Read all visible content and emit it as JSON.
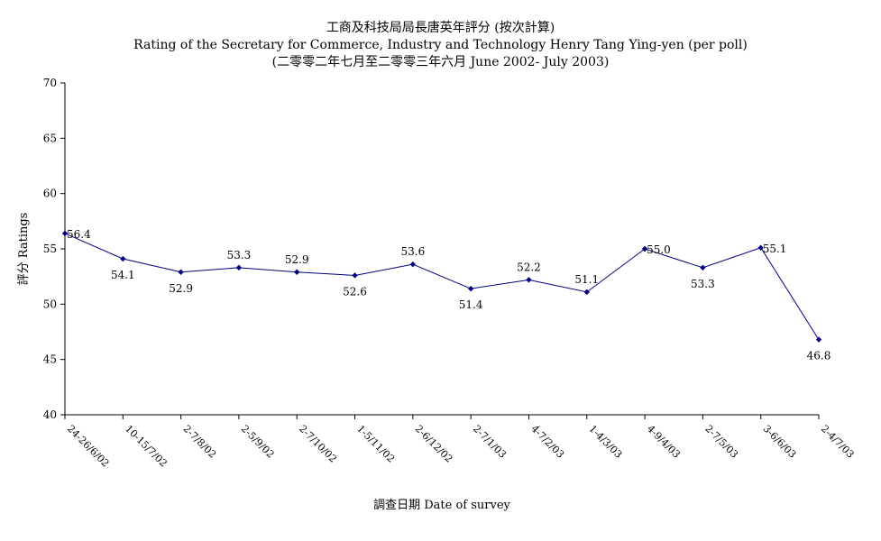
{
  "chart_data": {
    "type": "line",
    "title": "工商及科技局局長唐英年評分 (按次計算)",
    "subtitle": "Rating of the Secretary for Commerce, Industry and Technology Henry Tang Ying-yen  (per poll)",
    "subtitle2": "(二零零二年七月至二零零三年六月 June 2002- July 2003)",
    "xlabel": "調查日期 Date of survey",
    "ylabel": "評分 Ratings",
    "ylim": [
      40,
      70
    ],
    "yticks": [
      "40",
      "45",
      "50",
      "55",
      "60",
      "65",
      "70"
    ],
    "grid": false,
    "categories": [
      "24-26/6/02",
      "10-15/7/02",
      "2-7/8/02",
      "2-5/9/02",
      "2-7/10/02",
      "1-5/11/02",
      "2-6/12/02",
      "2-7/1/03",
      "4-7/2/03",
      "1-4/3/03",
      "4-9/4/03",
      "2-7/5/03",
      "3-6/6/03",
      "2-4/7/03"
    ],
    "values": [
      56.4,
      54.1,
      52.9,
      53.3,
      52.9,
      52.6,
      53.6,
      51.4,
      52.2,
      51.1,
      55.0,
      53.3,
      55.1,
      46.8
    ],
    "labels": [
      "56.4",
      "54.1",
      "52.9",
      "53.3",
      "52.9",
      "52.6",
      "53.6",
      "51.4",
      "52.2",
      "51.1",
      "55.0",
      "53.3",
      "55.1",
      "46.8"
    ],
    "colors": {
      "line": "#000080",
      "marker": "#000080",
      "axis": "#000000"
    }
  }
}
